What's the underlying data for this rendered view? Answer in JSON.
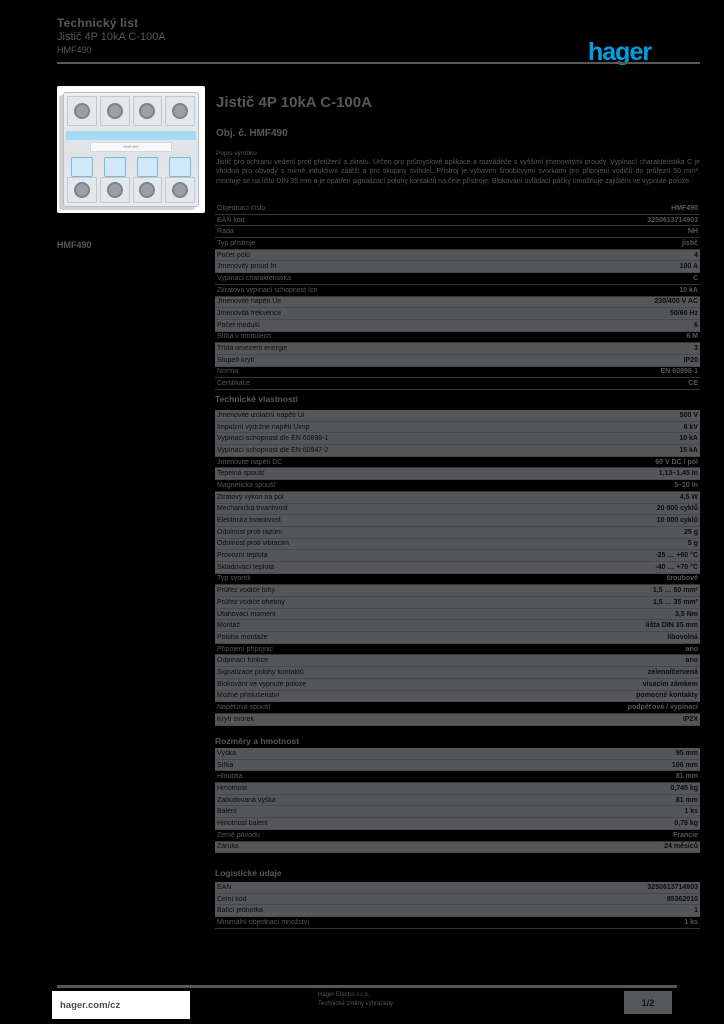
{
  "colors": {
    "accent_blue": "#009fe3",
    "text_gray": "#55575a",
    "band_gray": "#54565a",
    "product_band_blue": "#a6d9f2",
    "page_bg": "#000000"
  },
  "header": {
    "line1": "Technický list",
    "line2": "Jistič 4P 10kA C-100A",
    "line3": "HMF490",
    "logo": "hager"
  },
  "product": {
    "image_alt": "Čtyřpólový jistič Hager, bílé provedení s modrými páčkami",
    "image_label": "HMF490",
    "ref": "HMF490",
    "title": "Jistič 4P 10kA C-100A",
    "subtitle": "Obj. č. HMF490",
    "desc_label": "Popis výrobku",
    "description": "Jistič pro ochranu vedení proti přetížení a zkratu. Určen pro průmyslové aplikace a rozváděče s vyššími jmenovitými proudy. Vypínací charakteristika C je vhodná pro obvody s mírně induktivní zátěží a pro skupiny svítidel. Přístroj je vybaven šroubovými svorkami pro připojení vodičů do průřezu 50 mm², montuje se na lištu DIN 35 mm a je opatřen signalizací polohy kontaktů na čele přístroje. Blokování ovládací páčky umožňuje zajištění ve vypnuté poloze."
  },
  "sections": [
    {
      "heading": "",
      "rows": [
        {
          "label": "Objednací číslo",
          "value": "HMF490",
          "shaded": false
        },
        {
          "label": "EAN kód",
          "value": "3250613714903",
          "shaded": false
        },
        {
          "label": "Řada",
          "value": "NH",
          "shaded": false
        },
        {
          "label": "Typ přístroje",
          "value": "jistič",
          "shaded": false
        },
        {
          "label": "Počet pólů",
          "value": "4",
          "shaded": true
        },
        {
          "label": "Jmenovitý proud In",
          "value": "100 A",
          "shaded": true
        },
        {
          "label": "Vypínací charakteristika",
          "value": "C",
          "shaded": false
        },
        {
          "label": "Zkratová vypínací schopnost Icn",
          "value": "10 kA",
          "shaded": false
        },
        {
          "label": "Jmenovité napětí Ue",
          "value": "230/400 V AC",
          "shaded": true
        },
        {
          "label": "Jmenovitá frekvence",
          "value": "50/60 Hz",
          "shaded": true
        },
        {
          "label": "Počet modulů",
          "value": "6",
          "shaded": true
        },
        {
          "label": "Šířka v modulech",
          "value": "6 M",
          "shaded": false
        },
        {
          "label": "Třída omezení energie",
          "value": "3",
          "shaded": true
        },
        {
          "label": "Stupeň krytí",
          "value": "IP20",
          "shaded": true
        },
        {
          "label": "Norma",
          "value": "EN 60898-1",
          "shaded": false
        },
        {
          "label": "Certifikace",
          "value": "CE",
          "shaded": false
        }
      ]
    },
    {
      "heading": "Technické vlastnosti",
      "rows": [
        {
          "label": "Jmenovité izolační napětí Ui",
          "value": "500 V",
          "shaded": true
        },
        {
          "label": "Impulzní výdržné napětí Uimp",
          "value": "6 kV",
          "shaded": true
        },
        {
          "label": "Vypínací schopnost dle EN 60898-1",
          "value": "10 kA",
          "shaded": true
        },
        {
          "label": "Vypínací schopnost dle EN 60947-2",
          "value": "15 kA",
          "shaded": true
        },
        {
          "label": "Jmenovité napětí DC",
          "value": "60 V DC / pól",
          "shaded": false
        },
        {
          "label": "Tepelná spoušť",
          "value": "1,13–1,45 In",
          "shaded": true
        },
        {
          "label": "Magnetická spoušť",
          "value": "5–10 In",
          "shaded": false
        },
        {
          "label": "Ztrátový výkon na pól",
          "value": "4,5 W",
          "shaded": true
        },
        {
          "label": "Mechanická trvanlivost",
          "value": "20 000 cyklů",
          "shaded": true
        },
        {
          "label": "Elektrická trvanlivost",
          "value": "10 000 cyklů",
          "shaded": true
        },
        {
          "label": "Odolnost proti rázům",
          "value": "25 g",
          "shaded": true
        },
        {
          "label": "Odolnost proti vibracím",
          "value": "5 g",
          "shaded": true
        },
        {
          "label": "Provozní teplota",
          "value": "-25 … +60 °C",
          "shaded": true
        },
        {
          "label": "Skladovací teplota",
          "value": "-40 … +70 °C",
          "shaded": true
        },
        {
          "label": "Typ svorek",
          "value": "šroubové",
          "shaded": false
        },
        {
          "label": "Průřez vodiče tuhý",
          "value": "1,5 … 50 mm²",
          "shaded": true
        },
        {
          "label": "Průřez vodiče ohebný",
          "value": "1,5 … 35 mm²",
          "shaded": true
        },
        {
          "label": "Utahovací moment",
          "value": "3,5 Nm",
          "shaded": true
        },
        {
          "label": "Montáž",
          "value": "lišta DIN 35 mm",
          "shaded": true
        },
        {
          "label": "Poloha montáže",
          "value": "libovolná",
          "shaded": true
        },
        {
          "label": "Připojení přípojnic",
          "value": "ano",
          "shaded": false
        },
        {
          "label": "Odpínací funkce",
          "value": "ano",
          "shaded": true
        },
        {
          "label": "Signalizace polohy kontaktů",
          "value": "zeleno/červená",
          "shaded": true
        },
        {
          "label": "Blokování ve vypnuté poloze",
          "value": "visacím zámkem",
          "shaded": true
        },
        {
          "label": "Možné příslušenství",
          "value": "pomocné kontakty",
          "shaded": true
        },
        {
          "label": "Napěťová spoušť",
          "value": "podpěťová / vypínací",
          "shaded": false
        },
        {
          "label": "Krytí svorek",
          "value": "IP2X",
          "shaded": true
        }
      ]
    },
    {
      "heading": "Rozměry a hmotnost",
      "rows": [
        {
          "label": "Výška",
          "value": "95 mm",
          "shaded": true
        },
        {
          "label": "Šířka",
          "value": "106 mm",
          "shaded": true
        },
        {
          "label": "Hloubka",
          "value": "81 mm",
          "shaded": false
        },
        {
          "label": "Hmotnost",
          "value": "0,745 kg",
          "shaded": true
        },
        {
          "label": "Zabudovaná výška",
          "value": "81 mm",
          "shaded": true
        },
        {
          "label": "Balení",
          "value": "1 ks",
          "shaded": true
        },
        {
          "label": "Hmotnost balení",
          "value": "0,78 kg",
          "shaded": true
        },
        {
          "label": "Země původu",
          "value": "Francie",
          "shaded": false
        },
        {
          "label": "Záruka",
          "value": "24 měsíců",
          "shaded": true
        }
      ]
    },
    {
      "heading": "Logistické údaje",
      "rows": [
        {
          "label": "EAN",
          "value": "3250613714903",
          "shaded": true
        },
        {
          "label": "Celní kód",
          "value": "85362010",
          "shaded": true
        },
        {
          "label": "Balící jednotka",
          "value": "1",
          "shaded": true
        },
        {
          "label": "Minimální objednací množství",
          "value": "1 ks",
          "shaded": false
        }
      ]
    }
  ],
  "footer": {
    "website": "hager.com/cz",
    "center_line1": "Hager Electro s.r.o.",
    "center_line2": "Technické změny vyhrazeny",
    "page": "1/2"
  }
}
